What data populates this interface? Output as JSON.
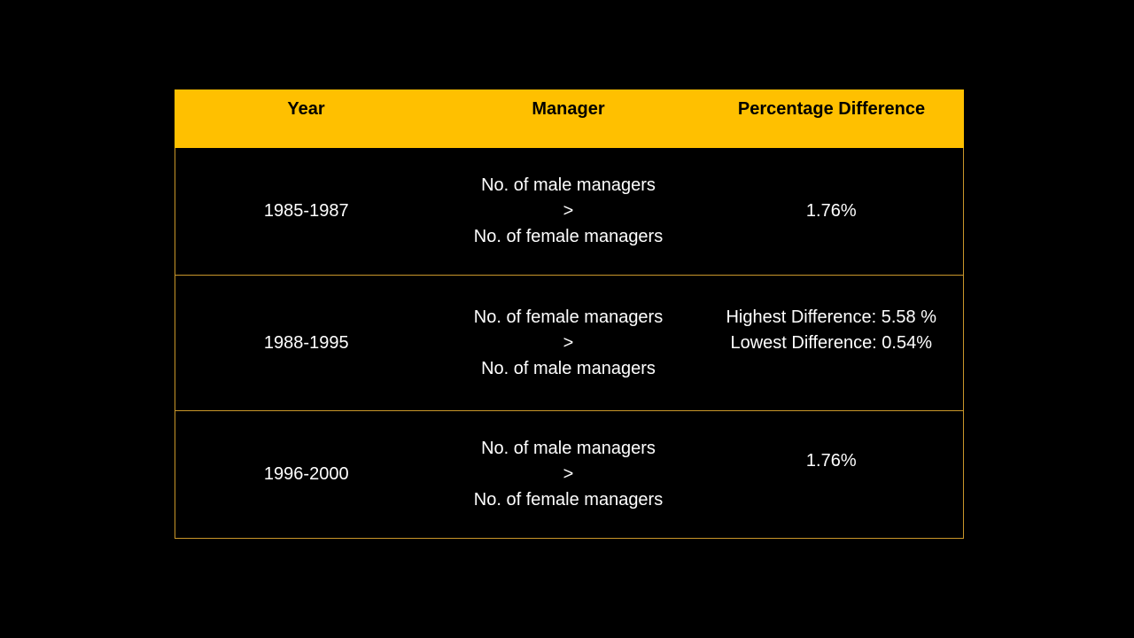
{
  "table": {
    "headers": [
      "Year",
      "Manager",
      "Percentage Difference"
    ],
    "rows": [
      {
        "year": "1985-1987",
        "manager": [
          "No. of male managers",
          ">",
          "No. of female managers"
        ],
        "percentage": [
          "1.76%"
        ]
      },
      {
        "year": "1988-1995",
        "manager": [
          "No. of female managers",
          ">",
          "No. of male managers"
        ],
        "percentage": [
          "Highest Difference: 5.58 %",
          "Lowest Difference: 0.54%"
        ]
      },
      {
        "year": "1996-2000",
        "manager": [
          "No. of male managers",
          ">",
          "No. of female managers"
        ],
        "percentage": [
          "1.76%"
        ]
      }
    ]
  },
  "colors": {
    "background": "#000000",
    "header_fill": "#ffc000",
    "header_text": "#000000",
    "body_text": "#ffffff",
    "grid_line": "#c9962a"
  }
}
